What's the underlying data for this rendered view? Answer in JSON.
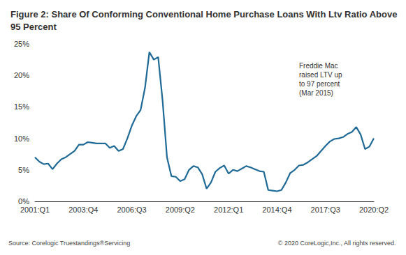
{
  "chart_data": {
    "type": "line",
    "title": "Figure 2: Share Of Conforming Conventional Home Purchase Loans With Ltv Ratio Above 95 Percent",
    "annotation": "Freddie Mac\nraised LTV up\nto 97 percent\n(Mar 2015)",
    "source": "Source: Corelogic Truestandings®Servicing",
    "copyright": "© 2020 CoreLogic,Inc., All rights reserved.",
    "categories": [
      "2001:Q1",
      null,
      null,
      null,
      null,
      null,
      null,
      null,
      null,
      null,
      null,
      "2003:Q4",
      null,
      null,
      null,
      null,
      null,
      null,
      null,
      null,
      null,
      null,
      "2006:Q3",
      null,
      null,
      null,
      null,
      null,
      null,
      null,
      null,
      null,
      null,
      "2009:Q2",
      null,
      null,
      null,
      null,
      null,
      null,
      null,
      null,
      null,
      null,
      "2012:Q1",
      null,
      null,
      null,
      null,
      null,
      null,
      null,
      null,
      null,
      null,
      "2014:Q4",
      null,
      null,
      null,
      null,
      null,
      null,
      null,
      null,
      null,
      null,
      "2017:Q3",
      null,
      null,
      null,
      null,
      null,
      null,
      null,
      null,
      null,
      null,
      "2020:Q2"
    ],
    "values": [
      7.0,
      6.3,
      5.9,
      6.0,
      5.1,
      6.0,
      6.7,
      7.0,
      7.5,
      8.0,
      9.0,
      9.0,
      9.4,
      9.3,
      9.2,
      9.2,
      9.2,
      8.5,
      8.8,
      8.0,
      8.3,
      10.0,
      12.0,
      13.5,
      14.5,
      18.0,
      23.7,
      22.5,
      22.9,
      16.0,
      7.0,
      4.0,
      3.9,
      3.2,
      3.5,
      5.0,
      5.6,
      5.4,
      4.3,
      2.0,
      3.0,
      4.7,
      5.3,
      5.7,
      4.4,
      5.0,
      4.8,
      5.2,
      5.6,
      5.4,
      5.1,
      4.8,
      4.7,
      1.8,
      1.7,
      1.6,
      1.8,
      3.0,
      4.5,
      5.0,
      5.7,
      5.8,
      6.2,
      6.7,
      7.2,
      8.0,
      8.8,
      9.5,
      9.9,
      10.0,
      10.2,
      10.7,
      11.0,
      11.8,
      10.6,
      8.3,
      8.7,
      10.0
    ],
    "color": "#1f6a96",
    "ylim": [
      0,
      25
    ],
    "yticks": [
      {
        "value": 0,
        "label": "0%"
      },
      {
        "value": 5,
        "label": "5%"
      },
      {
        "value": 10,
        "label": "10%"
      },
      {
        "value": 15,
        "label": "15%"
      },
      {
        "value": 20,
        "label": "20%"
      },
      {
        "value": 25,
        "label": "25%"
      }
    ],
    "grid": false
  }
}
